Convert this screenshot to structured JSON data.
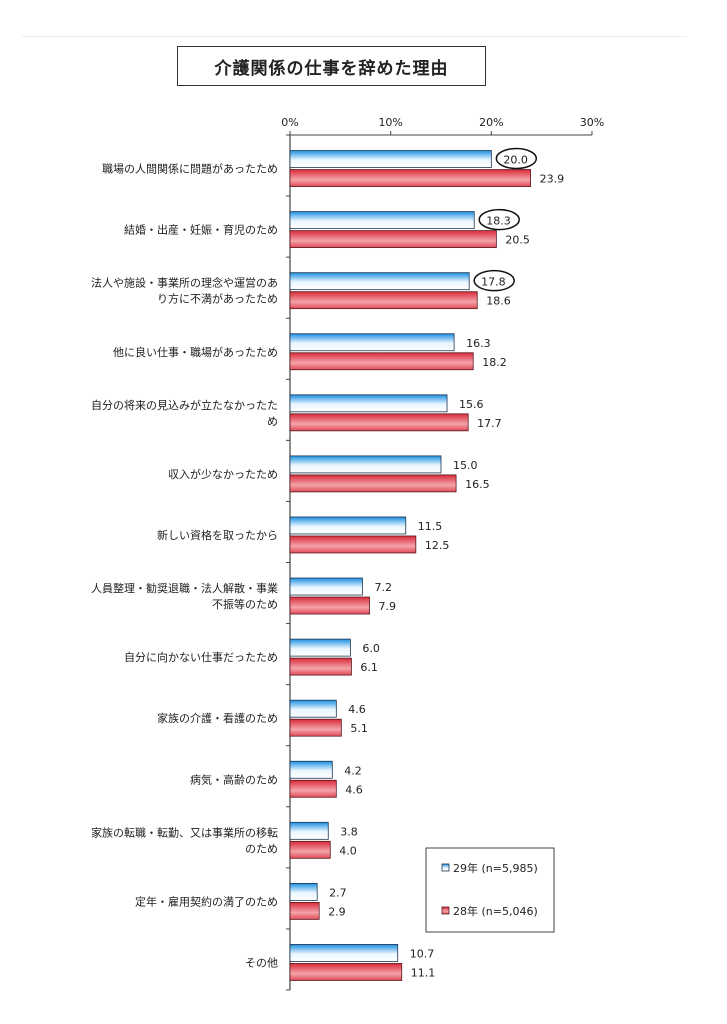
{
  "chart_data": {
    "type": "bar",
    "orientation": "horizontal",
    "title": "介護関係の仕事を辞めた理由",
    "xlim": [
      0,
      30
    ],
    "x_ticks": [
      "0%",
      "10%",
      "20%",
      "30%"
    ],
    "legend_position": "bottom-right",
    "categories": [
      [
        "職場の人間関係に問題があったため"
      ],
      [
        "結婚・出産・妊娠・育児のため"
      ],
      [
        "法人や施設・事業所の理念や運営のあ",
        "り方に不満があったため"
      ],
      [
        "他に良い仕事・職場があったため"
      ],
      [
        "自分の将来の見込みが立たなかったた",
        "め"
      ],
      [
        "収入が少なかったため"
      ],
      [
        "新しい資格を取ったから"
      ],
      [
        "人員整理・勧奨退職・法人解散・事業",
        "不振等のため"
      ],
      [
        "自分に向かない仕事だったため"
      ],
      [
        "家族の介護・看護のため"
      ],
      [
        "病気・高齢のため"
      ],
      [
        "家族の転職・転勤、又は事業所の移転",
        "のため"
      ],
      [
        "定年・雇用契約の満了のため"
      ],
      [
        "その他"
      ]
    ],
    "series": [
      {
        "name": "29年 (n=5,985)",
        "color": "#1a8fe0",
        "values": [
          20.0,
          18.3,
          17.8,
          16.3,
          15.6,
          15.0,
          11.5,
          7.2,
          6.0,
          4.6,
          4.2,
          3.8,
          2.7,
          10.7
        ],
        "labels": [
          "20.0",
          "18.3",
          "17.8",
          "16.3",
          "15.6",
          "15.0",
          "11.5",
          "7.2",
          "6.0",
          "4.6",
          "4.2",
          "3.8",
          "2.7",
          "10.7"
        ],
        "circled_indices": [
          0,
          1,
          2
        ]
      },
      {
        "name": "28年 (n=5,046)",
        "color": "#d92b3a",
        "values": [
          23.9,
          20.5,
          18.6,
          18.2,
          17.7,
          16.5,
          12.5,
          7.9,
          6.1,
          5.1,
          4.6,
          4.0,
          2.9,
          11.1
        ],
        "labels": [
          "23.9",
          "20.5",
          "18.6",
          "18.2",
          "17.7",
          "16.5",
          "12.5",
          "7.9",
          "6.1",
          "5.1",
          "4.6",
          "4.0",
          "2.9",
          "11.1"
        ]
      }
    ]
  }
}
